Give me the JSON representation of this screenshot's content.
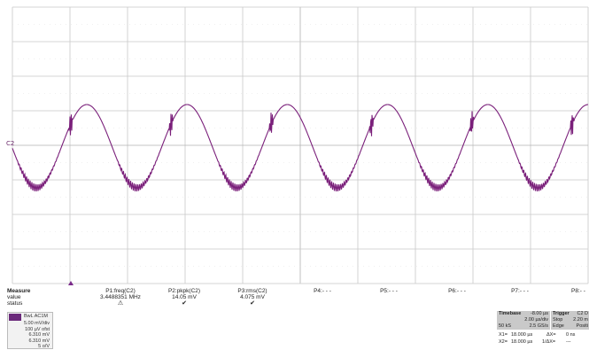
{
  "channel_marker": "C2",
  "measure": {
    "title": "Measure",
    "row_labels": [
      "value",
      "status"
    ],
    "params": [
      {
        "name": "P1:freq(C2)",
        "value": "3.4488351 MHz",
        "status": "⚠"
      },
      {
        "name": "P2:pkpk(C2)",
        "value": "14.05 mV",
        "status": "✔"
      },
      {
        "name": "P3:rms(C2)",
        "value": "4.075 mV",
        "status": "✔"
      },
      {
        "name": "P4:- - -",
        "value": "",
        "status": ""
      },
      {
        "name": "P5:- - -",
        "value": "",
        "status": ""
      },
      {
        "name": "P6:- - -",
        "value": "",
        "status": ""
      },
      {
        "name": "P7:- - -",
        "value": "",
        "status": ""
      },
      {
        "name": "P8:- -",
        "value": "",
        "status": ""
      }
    ]
  },
  "channel_box": {
    "name": "BwL AC1M",
    "lines": [
      "5.00 mV/div",
      "100 µV ofst",
      "6.310 mV",
      "6.310 mV",
      "5 o/V"
    ]
  },
  "timebase": {
    "label": "Timebase",
    "delay": "-8.00 µs",
    "per_div": "2.00 µs/div",
    "samples": "50 kS",
    "rate": "2.5 GS/s"
  },
  "trigger": {
    "label": "Trigger",
    "source": "C2 D",
    "mode": "Stop",
    "level": "2.20 m",
    "type": "Edge",
    "slope": "Positi"
  },
  "cursors": {
    "x1_label": "X1=",
    "x1": "18.000 µs",
    "dx_label": "ΔX=",
    "dx": "0 ns",
    "x2_label": "X2=",
    "x2": "18.000 µs",
    "inv_label": "1/ΔX=",
    "inv": "---"
  },
  "colors": {
    "trace": "#7a1f7a",
    "grid": "#c8c8c8",
    "grid_center": "#b0b0b0"
  }
}
